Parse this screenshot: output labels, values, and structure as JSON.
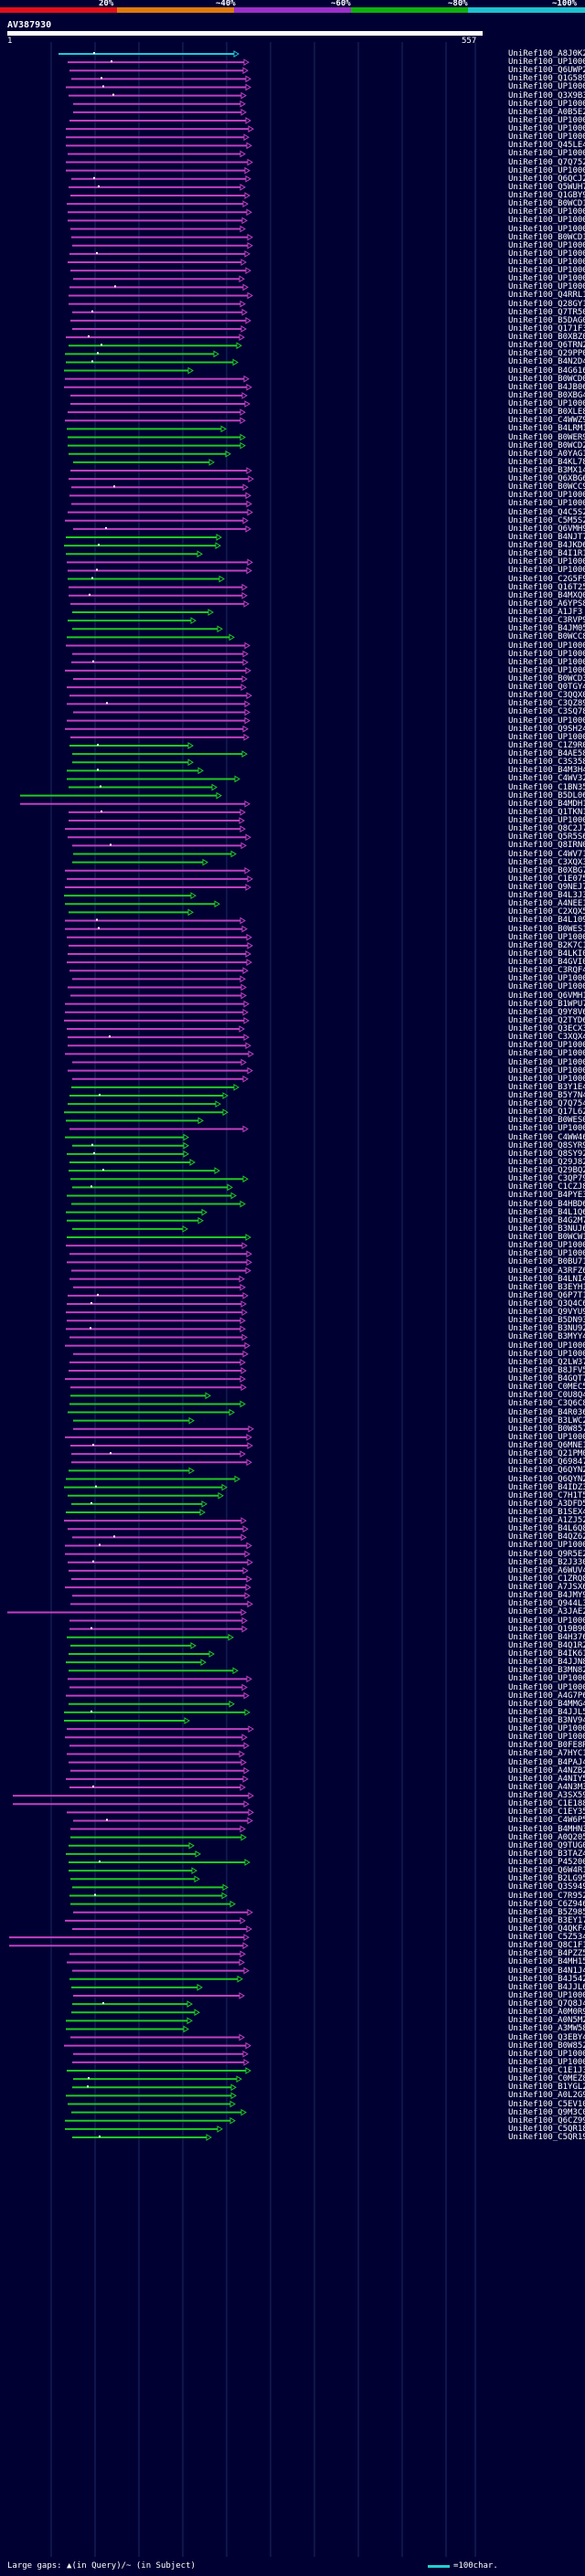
{
  "legend": {
    "colors": [
      "#e0101a",
      "#e07a10",
      "#9b30c8",
      "#10b010",
      "#20c0d0"
    ],
    "labels": [
      "20%",
      "~40%",
      "~60%",
      "~80%",
      "~100%"
    ]
  },
  "query": {
    "title": "AV387930",
    "start": "1",
    "end": "557"
  },
  "hits": {
    "prefix": "UniRef100_",
    "ids": [
      "A8J0K2",
      "UP1000...",
      "Q6UWP2",
      "Q1G589",
      "UP1000...",
      "Q3X9B3",
      "UP1000...",
      "A0B5E2",
      "UP1000...",
      "UP1000...",
      "UP1000...",
      "Q45LE4",
      "UP1000...",
      "Q7Q752",
      "UP1000...",
      "Q6QCJ2",
      "Q5WUH7",
      "Q1GBY9",
      "B0WCD1",
      "UP1000...",
      "UP1000...",
      "UP1000...",
      "B0WCD1",
      "UP1000...",
      "UP1000...",
      "UP1000...",
      "UP1000...",
      "UP1000...",
      "UP1000...",
      "Q4RRL1",
      "Q28GY1",
      "Q7TR50",
      "B5DAG0",
      "Q171F3",
      "B0XBZ0",
      "Q6TRN2",
      "Q29PP0",
      "B4N2D4",
      "B4G616",
      "B0WCD0",
      "B4JB06",
      "B0XBG4",
      "UP1000...",
      "B0XLE8",
      "C4WWZ9",
      "B4LRM1",
      "B0WER9",
      "B0WCD2",
      "A0YAG1",
      "B4KL78",
      "B3MX14",
      "Q6XBG6",
      "B0WCC9",
      "UP1000...",
      "UP1000...",
      "Q4C5S2",
      "C5M5S2",
      "Q6VMH9",
      "B4NJT7",
      "B4JKD6",
      "B4I1R1",
      "UP1000...",
      "UP1000...",
      "C2G5F9",
      "Q16T25",
      "B4MXQ0",
      "A6YPS8",
      "A1JF3",
      "C3RVP9",
      "B4JM05",
      "B0WCC8",
      "UP1000...",
      "UP1000...",
      "UP1000...",
      "UP1000...",
      "B0WCD3",
      "Q0TGY4",
      "C3QQX0",
      "C3QZ89",
      "C3SQ78",
      "UP1000...",
      "Q9SH24",
      "UP1000...",
      "C1Z9R0",
      "B4AE58",
      "C3S358",
      "B4M3H4",
      "C4WV32",
      "C1BN35",
      "B5DL06",
      "B4MDH1",
      "Q1TKN1",
      "UP1000...",
      "Q8C2J7",
      "Q5R5S6",
      "Q8IRN0",
      "C4WV71",
      "C3XQX3",
      "B0XBG7",
      "C1E075",
      "Q9NEJ7",
      "B4L3J3",
      "A4NEE1",
      "C2XQX5",
      "B4L109",
      "B0WES1",
      "UP1000...",
      "B2K7C1",
      "B4LKI0",
      "B4GVI0",
      "C3RQF4",
      "UP1000...",
      "UP1000...",
      "Q6VMH1",
      "B1WPU7",
      "Q9Y8V6",
      "Q2TYD6",
      "Q3ECX3",
      "C3XQX4",
      "UP1000...",
      "UP1000...",
      "UP1000...",
      "UP1000...",
      "UP1000...",
      "B3Y1E4",
      "B5Y7N4",
      "Q7Q754",
      "Q17L62",
      "B0WES0",
      "UP1000...",
      "C4WW46",
      "Q8SYR9",
      "Q8SY92",
      "Q29J82",
      "Q29BQ2",
      "C3QP79",
      "C1CZJ8",
      "B4PYE3",
      "B4HBD6",
      "B4L1Q6",
      "B4G2M7",
      "B3NUJ6",
      "B0WCW1",
      "UP1000...",
      "UP1000...",
      "B0BU71",
      "A3RFZ6",
      "B4LNI4",
      "B3EYH1",
      "Q6P7T1",
      "Q3Q4C6",
      "Q9VYU9",
      "B5DN93",
      "B3NU92",
      "B3MYY4",
      "UP1000...",
      "UP1000...",
      "Q2LW37",
      "B8JFV5",
      "B4GQT7",
      "C0MEC5",
      "C0U8Q4",
      "C3Q6C8",
      "B4R036",
      "B3LWC2",
      "B0W857",
      "UP1000...",
      "Q6MNE1",
      "Q21PM0",
      "Q69847",
      "Q6QYN2",
      "Q6QYN2",
      "B4IDZ3",
      "C7H1T5",
      "A3DFD5",
      "B1SEX4",
      "A1ZJ52",
      "B4L6Q8",
      "B4QZ62",
      "UP1000...",
      "Q9R5E2",
      "B2J330",
      "A6WUV4",
      "C1ZRQ8",
      "A7JSX6",
      "B4JMY9",
      "Q944L3",
      "A3JAE2",
      "UP1000...",
      "Q19B90",
      "B4H376",
      "B4Q1R2",
      "B4IK61",
      "B4JJN8",
      "B3MN82",
      "UP1000...",
      "UP1000...",
      "A4G7P6",
      "B4MMG4",
      "B4JJL5",
      "B3NV94",
      "UP1000...",
      "UP1000...",
      "B0FE8R",
      "A7HYC1",
      "B4PAJ4",
      "A4NZB2",
      "A4NIY5",
      "A4N3M3",
      "A3SX59",
      "C1E188",
      "C1EY35",
      "C4W6P5",
      "B4MHN3",
      "A0Q205",
      "Q9TUG0",
      "B3TAZ4",
      "P45200",
      "Q6W4R1",
      "B2LG95",
      "Q3S949",
      "C7R952",
      "C6Z946",
      "B5Z985",
      "B3EY17",
      "Q4QKF4",
      "C5Z534",
      "Q8C1F1",
      "B4PZZ5",
      "B4MH15",
      "B4N1J4",
      "B4J542",
      "B4JJL6",
      "UP1000...",
      "Q7Q8J4",
      "A0M0R9",
      "A0N5M2",
      "A3MW58",
      "Q3EBY4",
      "B0W852",
      "UP1000...",
      "UP1000...",
      "C1E1J3",
      "C0MEZ8",
      "B1YGL2",
      "A0L2G9",
      "C5EV10",
      "Q9M3C0",
      "Q6CZ99",
      "C5QR18",
      "C5QR19"
    ]
  },
  "footer": {
    "gaps_text": "Large gaps: ▲(in Query)/~ (in Subject)",
    "scale_text": "=100char."
  }
}
